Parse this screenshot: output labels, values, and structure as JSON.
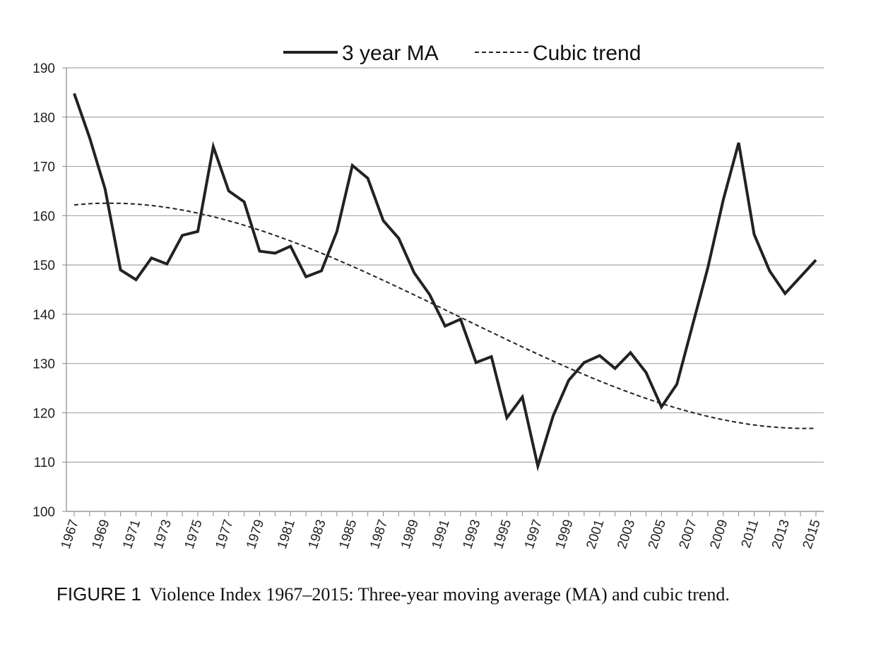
{
  "chart_data": {
    "type": "line",
    "title": "",
    "xlabel": "",
    "ylabel": "",
    "ylim": [
      100,
      190
    ],
    "yticks": [
      100,
      110,
      120,
      130,
      140,
      150,
      160,
      170,
      180,
      190
    ],
    "xlim": [
      1967,
      2015
    ],
    "xticks": [
      "1967",
      "1969",
      "1971",
      "1973",
      "1975",
      "1977",
      "1979",
      "1981",
      "1983",
      "1985",
      "1987",
      "1989",
      "1991",
      "1993",
      "1995",
      "1997",
      "1999",
      "2001",
      "2003",
      "2005",
      "2007",
      "2009",
      "2011",
      "2013",
      "2015"
    ],
    "grid": true,
    "legend_position": "top-center",
    "series": [
      {
        "name": "3 year MA",
        "style": "solid",
        "color": "#222222",
        "x": [
          1967,
          1968,
          1969,
          1970,
          1971,
          1972,
          1973,
          1974,
          1975,
          1976,
          1977,
          1978,
          1979,
          1980,
          1981,
          1982,
          1983,
          1984,
          1985,
          1986,
          1987,
          1988,
          1989,
          1990,
          1991,
          1992,
          1993,
          1994,
          1995,
          1996,
          1997,
          1998,
          1999,
          2000,
          2001,
          2002,
          2003,
          2004,
          2005,
          2006,
          2007,
          2008,
          2009,
          2010,
          2011,
          2012,
          2013,
          2014,
          2015
        ],
        "values": [
          184.8,
          175.8,
          165.4,
          149.0,
          147.0,
          151.4,
          150.2,
          156.0,
          156.8,
          174.0,
          165.0,
          162.8,
          152.8,
          152.4,
          153.8,
          147.6,
          148.8,
          156.8,
          170.2,
          167.6,
          159.0,
          155.4,
          148.4,
          144.0,
          137.6,
          139.0,
          130.2,
          131.4,
          119.0,
          123.2,
          109.2,
          119.4,
          126.6,
          130.2,
          131.6,
          129.0,
          132.2,
          128.2,
          121.2,
          125.8,
          137.6,
          149.4,
          163.2,
          174.8,
          156.2,
          148.8,
          144.2,
          147.6,
          151.0
        ]
      },
      {
        "name": "Cubic trend",
        "style": "dashed",
        "color": "#222222",
        "coefficients": {
          "center": 1991,
          "a": 140.9,
          "b": -1.52,
          "c": -0.0024,
          "d": 0.001
        }
      }
    ]
  },
  "caption": {
    "figure_label": "FIGURE 1",
    "text": "Violence Index 1967–2015: Three-year moving average (MA) and cubic trend."
  }
}
